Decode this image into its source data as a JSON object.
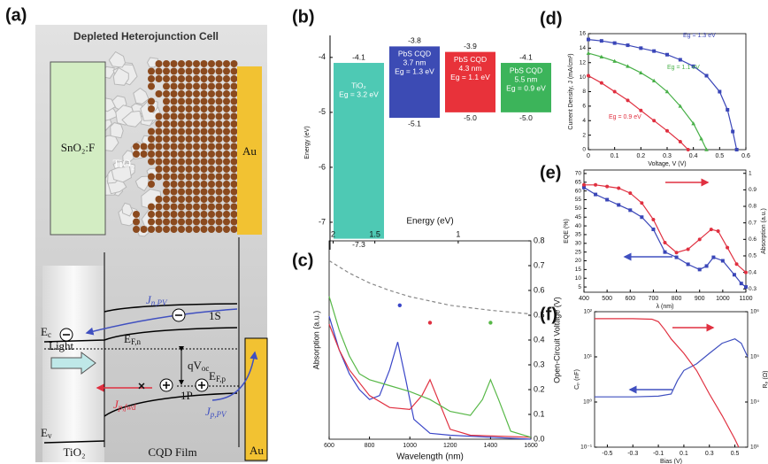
{
  "diagram": {
    "label": "(a)",
    "title": "Depleted Heterojunction Cell",
    "top": {
      "substrate": "SnO₂:F",
      "tio2": "TiO₂",
      "au": "Au"
    },
    "bottom": {
      "jn": {
        "main": "J",
        "sub": "n,PV"
      },
      "s1": "1S",
      "ec": {
        "main": "E",
        "sub": "c"
      },
      "efn": {
        "main": "E",
        "sub": "F,n"
      },
      "light": "Light",
      "qvoc": {
        "main": "qV",
        "sub": "oc"
      },
      "efp": {
        "main": "E",
        "sub": "F,p"
      },
      "jfwd": {
        "main": "J",
        "sub": "p,fwd"
      },
      "p1": "1P",
      "jpv": {
        "main": "J",
        "sub": "p,PV"
      },
      "ev": {
        "main": "E",
        "sub": "v"
      },
      "tio2": "TiO₂",
      "film": "CQD Film",
      "au": "Au"
    }
  },
  "chart_data": [
    {
      "type": "bar",
      "label": "(b)",
      "ylabel": "Energy (eV)",
      "ylim": [
        -7.5,
        -3.6
      ],
      "yticks": [
        -7,
        -6,
        -5,
        -4
      ],
      "categories": [
        [
          "TiO₂",
          "Eg = 3.2 eV"
        ],
        [
          "PbS CQD",
          "3.7 nm",
          "Eg = 1.3 eV"
        ],
        [
          "PbS CQD",
          "4.3 nm",
          "Eg = 1.1 eV"
        ],
        [
          "PbS CQD",
          "5.5 nm",
          "Eg = 0.9 eV"
        ]
      ],
      "values": [
        [
          -4.1,
          -7.3
        ],
        [
          -3.8,
          -5.1
        ],
        [
          -3.9,
          -5
        ],
        [
          -4.1,
          -5
        ]
      ],
      "value_labels": [
        [
          "-4.1",
          "-7.3"
        ],
        [
          "-3.8",
          "-5.1"
        ],
        [
          "-3.9",
          "-5.0"
        ],
        [
          "-4.1",
          "-5.0"
        ]
      ],
      "colors": [
        "#4ec9b4",
        "#3c4bb4",
        "#e8323a",
        "#3cb45a"
      ]
    },
    {
      "type": "line",
      "label": "(c)",
      "xlabel": "Wavelength (nm)",
      "ylabel": "Absorption (a.u.)",
      "y2label": "Open-Circuit Voltage (V)",
      "x2label": "Energy (eV)",
      "xlim": [
        600,
        1600
      ],
      "xticks": [
        600,
        800,
        1000,
        1200,
        1400,
        1600
      ],
      "x2ticks": [
        2,
        1.5,
        1
      ],
      "ylim": [
        0,
        1
      ],
      "y2lim": [
        0,
        0.8
      ],
      "y2ticks": [
        {
          "value": 0,
          "label": "0.0"
        },
        0.1,
        0.2,
        0.3,
        0.4,
        0.5,
        0.6,
        0.7,
        0.8
      ],
      "series": [
        {
          "color": "#3a46c8",
          "x": [
            600,
            650,
            700,
            750,
            800,
            850,
            900,
            940,
            980,
            1020,
            1100,
            1200,
            1400,
            1600
          ],
          "values": [
            0.62,
            0.45,
            0.33,
            0.25,
            0.2,
            0.22,
            0.35,
            0.49,
            0.3,
            0.1,
            0.03,
            0.02,
            0.01,
            0
          ]
        },
        {
          "color": "#e03040",
          "x": [
            600,
            650,
            700,
            800,
            900,
            1000,
            1060,
            1100,
            1140,
            1200,
            1300,
            1600
          ],
          "values": [
            0.58,
            0.45,
            0.35,
            0.22,
            0.16,
            0.15,
            0.22,
            0.3,
            0.2,
            0.05,
            0.02,
            0.01
          ]
        },
        {
          "color": "#58b848",
          "x": [
            600,
            650,
            700,
            750,
            800,
            900,
            1000,
            1100,
            1200,
            1300,
            1360,
            1400,
            1440,
            1500,
            1600
          ],
          "values": [
            0.72,
            0.55,
            0.42,
            0.33,
            0.3,
            0.27,
            0.24,
            0.2,
            0.14,
            0.12,
            0.2,
            0.3,
            0.2,
            0.04,
            0.01
          ]
        },
        {
          "color": "#888888",
          "dash": true,
          "axis": "y2",
          "x": [
            600,
            700,
            800,
            900,
            1000,
            1200,
            1400,
            1600
          ],
          "values": [
            0.72,
            0.67,
            0.63,
            0.6,
            0.575,
            0.54,
            0.52,
            0.505
          ]
        },
        {
          "color": "#3a46c8",
          "style": "dots",
          "axis": "y2",
          "x": [
            950
          ],
          "values": [
            0.54
          ]
        },
        {
          "color": "#e03040",
          "style": "dots",
          "axis": "y2",
          "x": [
            1100
          ],
          "values": [
            0.47
          ]
        },
        {
          "color": "#58b848",
          "style": "dots",
          "axis": "y2",
          "x": [
            1400
          ],
          "values": [
            0.47
          ]
        }
      ]
    },
    {
      "type": "line",
      "label": "(d)",
      "xlabel": "Voltage, V (V)",
      "ylabel": "Current Density, J (mA/cm²)",
      "xlim": [
        0,
        0.6
      ],
      "xticks": [
        0,
        0.1,
        0.2,
        0.3,
        0.4,
        0.5,
        0.6
      ],
      "ylim": [
        0,
        16
      ],
      "yticks": [
        0,
        2,
        4,
        6,
        8,
        10,
        12,
        14,
        16
      ],
      "series": [
        {
          "name": "Eg = 1.3 eV",
          "color": "#3a46b8",
          "marker": "square",
          "x": [
            0,
            0.05,
            0.1,
            0.15,
            0.2,
            0.25,
            0.3,
            0.35,
            0.4,
            0.45,
            0.5,
            0.53,
            0.55,
            0.565
          ],
          "values": [
            15.2,
            15,
            14.7,
            14.4,
            14,
            13.6,
            13.1,
            12.4,
            11.5,
            10.2,
            8,
            5.5,
            2.5,
            0
          ]
        },
        {
          "name": "Eg = 1.1 eV",
          "color": "#48b048",
          "marker": "triangle",
          "x": [
            0,
            0.05,
            0.1,
            0.15,
            0.2,
            0.25,
            0.3,
            0.35,
            0.4,
            0.43,
            0.45
          ],
          "values": [
            13.3,
            12.8,
            12.2,
            11.5,
            10.6,
            9.5,
            8,
            6,
            3.6,
            1.5,
            0
          ]
        },
        {
          "name": "Eg = 0.9 eV",
          "color": "#e03040",
          "marker": "circle",
          "x": [
            0,
            0.05,
            0.1,
            0.15,
            0.2,
            0.25,
            0.3,
            0.35,
            0.38
          ],
          "values": [
            10.2,
            9.2,
            8,
            6.8,
            5.4,
            4,
            2.6,
            1.1,
            0
          ]
        }
      ]
    },
    {
      "type": "line",
      "label": "(e)",
      "xlabel": "λ (nm)",
      "ylabel": "EQE (%)",
      "y2label": "Absorption (a.u.)",
      "xlim": [
        400,
        1100
      ],
      "xticks": [
        400,
        500,
        600,
        700,
        800,
        900,
        1000,
        1100
      ],
      "ylim": [
        2,
        72
      ],
      "yticks": [
        5,
        10,
        15,
        20,
        25,
        30,
        35,
        40,
        45,
        50,
        55,
        60,
        65,
        70
      ],
      "y2lim": [
        0.28,
        1.02
      ],
      "y2ticks": [
        0.3,
        0.4,
        0.5,
        0.6,
        0.7,
        0.8,
        0.9,
        1
      ],
      "series": [
        {
          "color": "#3a46b8",
          "marker": "square",
          "x": [
            400,
            450,
            500,
            550,
            600,
            650,
            700,
            750,
            800,
            850,
            900,
            930,
            960,
            1000,
            1050,
            1080,
            1100
          ],
          "values": [
            62,
            58,
            55,
            52,
            49,
            45,
            38,
            25,
            22,
            18,
            15,
            17,
            22,
            20,
            12,
            7,
            5
          ]
        },
        {
          "color": "#e03040",
          "marker": "circle",
          "axis": "y2",
          "x": [
            400,
            450,
            500,
            550,
            600,
            650,
            700,
            750,
            800,
            850,
            900,
            950,
            980,
            1020,
            1060,
            1100
          ],
          "values": [
            0.93,
            0.93,
            0.92,
            0.91,
            0.88,
            0.82,
            0.72,
            0.58,
            0.52,
            0.54,
            0.6,
            0.66,
            0.65,
            0.55,
            0.45,
            0.4
          ]
        }
      ]
    },
    {
      "type": "line",
      "label": "(f)",
      "xlabel": "Bias (V)",
      "ylabel": "Cₚ (nF)",
      "y2label": "Rₚ (Ω)",
      "log_y": true,
      "log_y2": true,
      "xlim": [
        -0.6,
        0.6
      ],
      "xticks": [
        -0.5,
        -0.3,
        -0.1,
        0.1,
        0.3,
        0.5
      ],
      "ylim": [
        0.1,
        100
      ],
      "yticks": [
        {
          "value": 0.1,
          "label": "10⁻¹"
        },
        {
          "value": 1,
          "label": "10⁰"
        },
        {
          "value": 10,
          "label": "10¹"
        },
        {
          "value": 100,
          "label": "10²"
        }
      ],
      "y2lim": [
        1000,
        1000000
      ],
      "y2ticks": [
        {
          "value": 1000,
          "label": "10³"
        },
        {
          "value": 10000,
          "label": "10⁴"
        },
        {
          "value": 100000,
          "label": "10⁵"
        },
        {
          "value": 1000000,
          "label": "10⁶"
        }
      ],
      "series": [
        {
          "color": "#4050c0",
          "x": [
            -0.6,
            -0.3,
            -0.1,
            0,
            0.05,
            0.1,
            0.2,
            0.3,
            0.4,
            0.5,
            0.55,
            0.6
          ],
          "values": [
            1.3,
            1.3,
            1.35,
            1.5,
            3,
            5,
            7,
            12,
            20,
            25,
            20,
            10
          ]
        },
        {
          "color": "#e03040",
          "axis": "y2",
          "x": [
            -0.6,
            -0.3,
            -0.15,
            -0.1,
            -0.05,
            0,
            0.1,
            0.2,
            0.3,
            0.4,
            0.5,
            0.53
          ],
          "values": [
            700000,
            700000,
            680000,
            600000,
            400000,
            250000,
            120000,
            50000,
            15000,
            5000,
            1500,
            1000
          ]
        }
      ]
    }
  ]
}
